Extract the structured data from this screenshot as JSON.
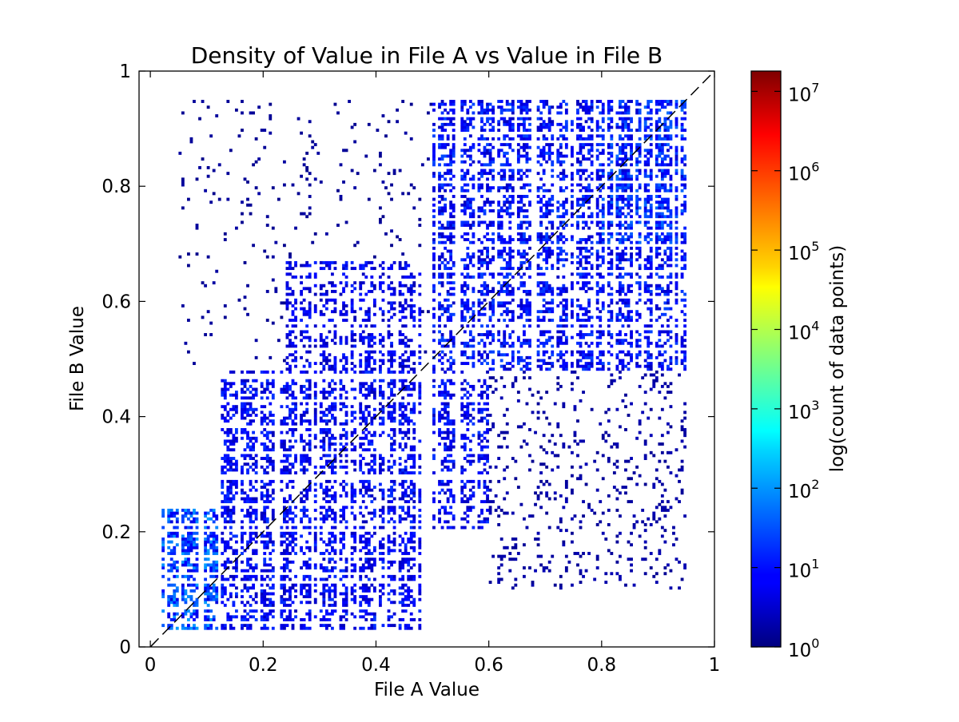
{
  "chart_data": {
    "type": "heatmap",
    "title": "Density of Value in File A vs Value in File B",
    "xlabel": "File A Value",
    "ylabel": "File B Value",
    "xlim": [
      -0.02,
      1.0
    ],
    "ylim": [
      0,
      1.0
    ],
    "x_ticks": [
      {
        "value": 0,
        "label": "0"
      },
      {
        "value": 0.2,
        "label": "0.2"
      },
      {
        "value": 0.4,
        "label": "0.4"
      },
      {
        "value": 0.6,
        "label": "0.6"
      },
      {
        "value": 0.8,
        "label": "0.8"
      },
      {
        "value": 1,
        "label": "1"
      }
    ],
    "y_ticks": [
      {
        "value": 0,
        "label": "0"
      },
      {
        "value": 0.2,
        "label": "0.2"
      },
      {
        "value": 0.4,
        "label": "0.4"
      },
      {
        "value": 0.6,
        "label": "0.6"
      },
      {
        "value": 0.8,
        "label": "0.8"
      },
      {
        "value": 1,
        "label": "1"
      }
    ],
    "colorbar": {
      "label": "log(count of data points)",
      "scale": "log",
      "colormap": "jet",
      "range": [
        1,
        18000000
      ],
      "ticks": [
        {
          "value": 1,
          "base": "10",
          "exp": "0"
        },
        {
          "value": 10,
          "base": "10",
          "exp": "1"
        },
        {
          "value": 100,
          "base": "10",
          "exp": "2"
        },
        {
          "value": 1000,
          "base": "10",
          "exp": "3"
        },
        {
          "value": 10000,
          "base": "10",
          "exp": "4"
        },
        {
          "value": 100000,
          "base": "10",
          "exp": "5"
        },
        {
          "value": 1000000,
          "base": "10",
          "exp": "6"
        },
        {
          "value": 10000000,
          "base": "10",
          "exp": "7"
        }
      ]
    },
    "reference_line": {
      "style": "dashed",
      "color": "#000000",
      "from": [
        -0.02,
        -0.02
      ],
      "to": [
        1.0,
        1.0
      ]
    },
    "density_regions": [
      {
        "x": [
          0.02,
          0.12
        ],
        "y": [
          0.03,
          0.24
        ],
        "density": 0.6,
        "log_count": 1.6
      },
      {
        "x": [
          0.12,
          0.48
        ],
        "y": [
          0.03,
          0.48
        ],
        "density": 0.5,
        "log_count": 1.0
      },
      {
        "x": [
          0.24,
          0.48
        ],
        "y": [
          0.48,
          0.67
        ],
        "density": 0.45,
        "log_count": 0.9
      },
      {
        "x": [
          0.5,
          0.6
        ],
        "y": [
          0.2,
          0.48
        ],
        "density": 0.45,
        "log_count": 1.0
      },
      {
        "x": [
          0.5,
          0.95
        ],
        "y": [
          0.48,
          0.95
        ],
        "density": 0.5,
        "log_count": 1.1
      },
      {
        "x": [
          0.8,
          0.95
        ],
        "y": [
          0.7,
          0.95
        ],
        "density": 0.65,
        "log_count": 1.3
      },
      {
        "x": [
          0.6,
          0.95
        ],
        "y": [
          0.1,
          0.48
        ],
        "density": 0.08,
        "log_count": 0.3
      },
      {
        "x": [
          0.05,
          0.5
        ],
        "y": [
          0.48,
          0.95
        ],
        "density": 0.03,
        "log_count": 0.2
      }
    ]
  }
}
